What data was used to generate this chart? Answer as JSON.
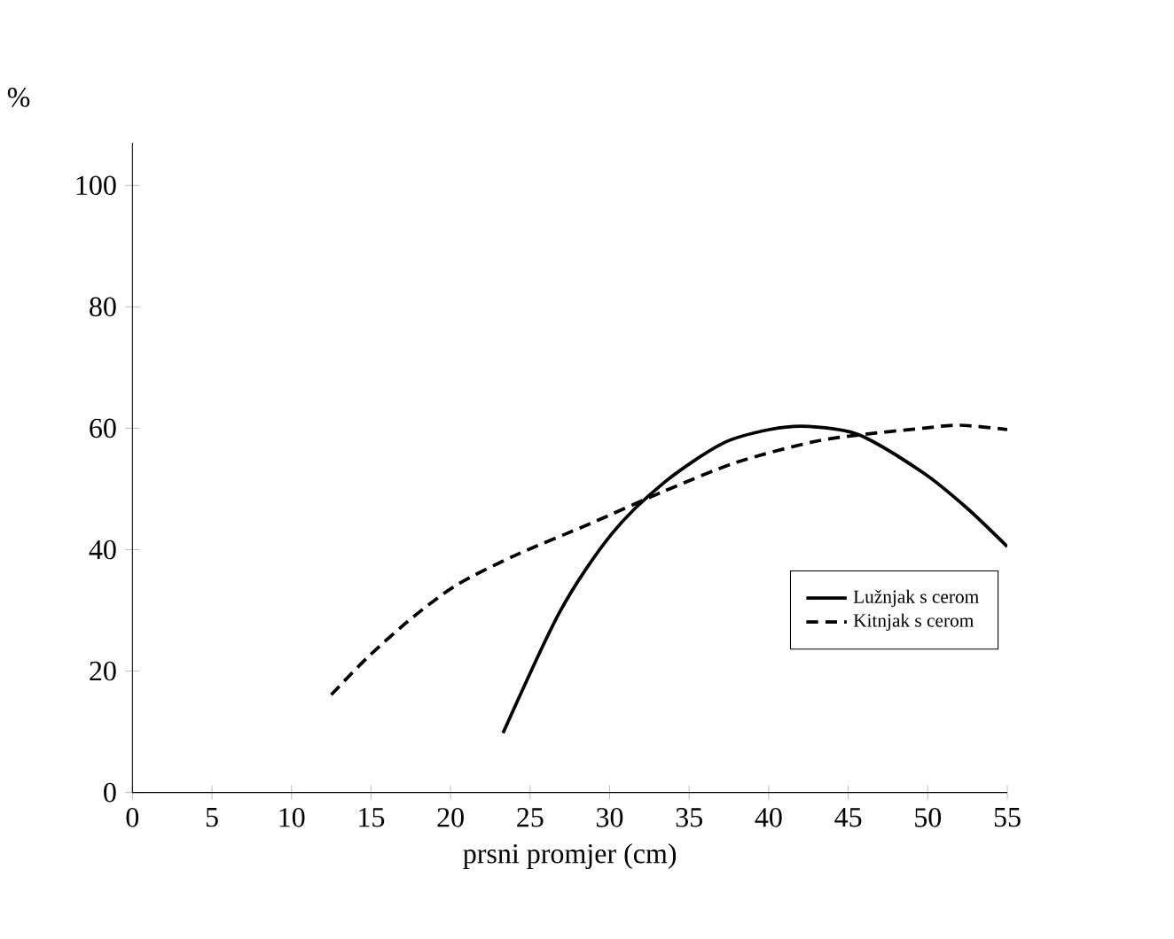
{
  "chart_data": {
    "type": "line",
    "xlabel": "prsni promjer (cm)",
    "ylabel": "%",
    "xlim": [
      0,
      55
    ],
    "ylim": [
      0,
      107
    ],
    "xticks": [
      0,
      5,
      10,
      15,
      20,
      25,
      30,
      35,
      40,
      45,
      50,
      55
    ],
    "yticks": [
      0,
      20,
      40,
      60,
      80,
      100
    ],
    "grid": false,
    "legend": "bottom right",
    "marker": "none",
    "series": [
      {
        "name": "Lužnjak s cerom",
        "color": "#000000",
        "line_style": "solid",
        "x": [
          23.3,
          26.9,
          30.1,
          33.4,
          37.1,
          40.1,
          42.5,
          45.7,
          49.7,
          52.4,
          55
        ],
        "values": [
          9.8,
          29.9,
          42.5,
          51.0,
          57.5,
          59.8,
          60.3,
          58.9,
          52.7,
          47.0,
          40.5
        ]
      },
      {
        "name": "Kitnjak s cerom",
        "color": "#000000",
        "line_style": "dashed",
        "x": [
          12.5,
          14.8,
          17.6,
          20.4,
          24.1,
          28.7,
          33.4,
          38.0,
          42.7,
          45.7,
          49.7,
          52,
          55
        ],
        "values": [
          16.1,
          22.3,
          28.8,
          34.2,
          39.1,
          44.2,
          49.6,
          54.4,
          57.7,
          58.9,
          60,
          60.5,
          59.8
        ]
      }
    ]
  }
}
